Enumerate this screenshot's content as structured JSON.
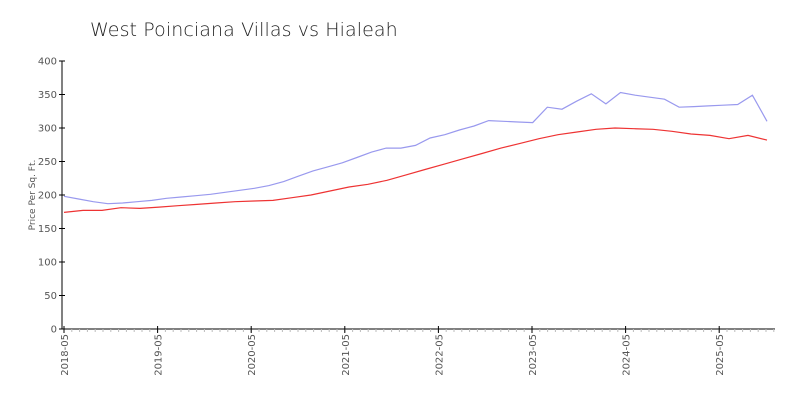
{
  "chart_data": {
    "type": "line",
    "title": "West Poinciana Villas vs Hialeah",
    "xlabel": "",
    "ylabel": "Price Per Sq. Ft.",
    "ylim": [
      0,
      400
    ],
    "yticks": [
      0,
      50,
      100,
      150,
      200,
      250,
      300,
      350,
      400
    ],
    "xticks": [
      "2018-05",
      "2019-05",
      "2020-05",
      "2021-05",
      "2022-05",
      "2023-05",
      "2024-05",
      "2025-05"
    ],
    "grid": false,
    "legend": "none",
    "series": [
      {
        "name": "West Poinciana Villas",
        "color": "#9999ee",
        "points": [
          [
            "2018-05",
            198
          ],
          [
            "2018-08",
            194
          ],
          [
            "2018-11",
            190
          ],
          [
            "2019-02",
            187
          ],
          [
            "2019-05",
            188
          ],
          [
            "2019-08",
            190
          ],
          [
            "2019-11",
            192
          ],
          [
            "2020-02",
            195
          ],
          [
            "2020-05",
            197
          ],
          [
            "2020-08",
            199
          ],
          [
            "2020-11",
            201
          ],
          [
            "2021-02",
            204
          ],
          [
            "2021-05",
            207
          ],
          [
            "2021-08",
            210
          ],
          [
            "2021-11",
            214
          ],
          [
            "2022-02",
            220
          ],
          [
            "2022-05",
            228
          ],
          [
            "2022-06",
            236
          ],
          [
            "2022-07",
            242
          ],
          [
            "2022-08",
            248
          ],
          [
            "2022-09",
            256
          ],
          [
            "2022-10",
            264
          ],
          [
            "2022-11",
            270
          ],
          [
            "2022-12",
            270
          ],
          [
            "2023-01",
            274
          ],
          [
            "2023-02",
            285
          ],
          [
            "2023-03",
            290
          ],
          [
            "2023-04",
            297
          ],
          [
            "2023-05",
            303
          ],
          [
            "2023-06",
            311
          ],
          [
            "2023-08",
            310
          ],
          [
            "2023-10",
            309
          ],
          [
            "2023-12",
            308
          ],
          [
            "2024-01",
            331
          ],
          [
            "2024-02",
            328
          ],
          [
            "2024-04",
            340
          ],
          [
            "2024-05",
            351
          ],
          [
            "2024-06",
            336
          ],
          [
            "2024-08",
            353
          ],
          [
            "2024-10",
            349
          ],
          [
            "2024-12",
            346
          ],
          [
            "2025-01",
            343
          ],
          [
            "2025-03",
            331
          ],
          [
            "2025-05",
            332
          ],
          [
            "2025-07",
            333
          ],
          [
            "2025-09",
            334
          ],
          [
            "2025-11",
            335
          ],
          [
            "2026-01",
            349
          ],
          [
            "2026-03",
            310
          ]
        ]
      },
      {
        "name": "Hialeah",
        "color": "#ee3333",
        "points": [
          [
            "2018-05",
            174
          ],
          [
            "2018-08",
            177
          ],
          [
            "2018-11",
            177
          ],
          [
            "2019-02",
            181
          ],
          [
            "2019-05",
            180
          ],
          [
            "2019-08",
            182
          ],
          [
            "2019-11",
            184
          ],
          [
            "2020-02",
            186
          ],
          [
            "2020-05",
            188
          ],
          [
            "2020-08",
            190
          ],
          [
            "2020-11",
            191
          ],
          [
            "2021-02",
            192
          ],
          [
            "2021-05",
            196
          ],
          [
            "2021-08",
            200
          ],
          [
            "2021-11",
            206
          ],
          [
            "2022-02",
            212
          ],
          [
            "2022-05",
            216
          ],
          [
            "2022-08",
            222
          ],
          [
            "2022-11",
            230
          ],
          [
            "2023-02",
            238
          ],
          [
            "2023-05",
            246
          ],
          [
            "2023-08",
            254
          ],
          [
            "2023-11",
            262
          ],
          [
            "2024-02",
            270
          ],
          [
            "2024-05",
            277
          ],
          [
            "2024-08",
            284
          ],
          [
            "2024-11",
            290
          ],
          [
            "2025-02",
            294
          ],
          [
            "2025-05",
            298
          ],
          [
            "2025-08",
            300
          ],
          [
            "2025-11",
            299
          ],
          [
            "2026-02",
            298
          ],
          [
            "2026-05",
            295
          ],
          [
            "2026-08",
            291
          ],
          [
            "2026-11",
            289
          ],
          [
            "2026-12",
            284
          ],
          [
            "2027-01",
            289
          ],
          [
            "2027-02",
            282
          ]
        ]
      }
    ]
  }
}
